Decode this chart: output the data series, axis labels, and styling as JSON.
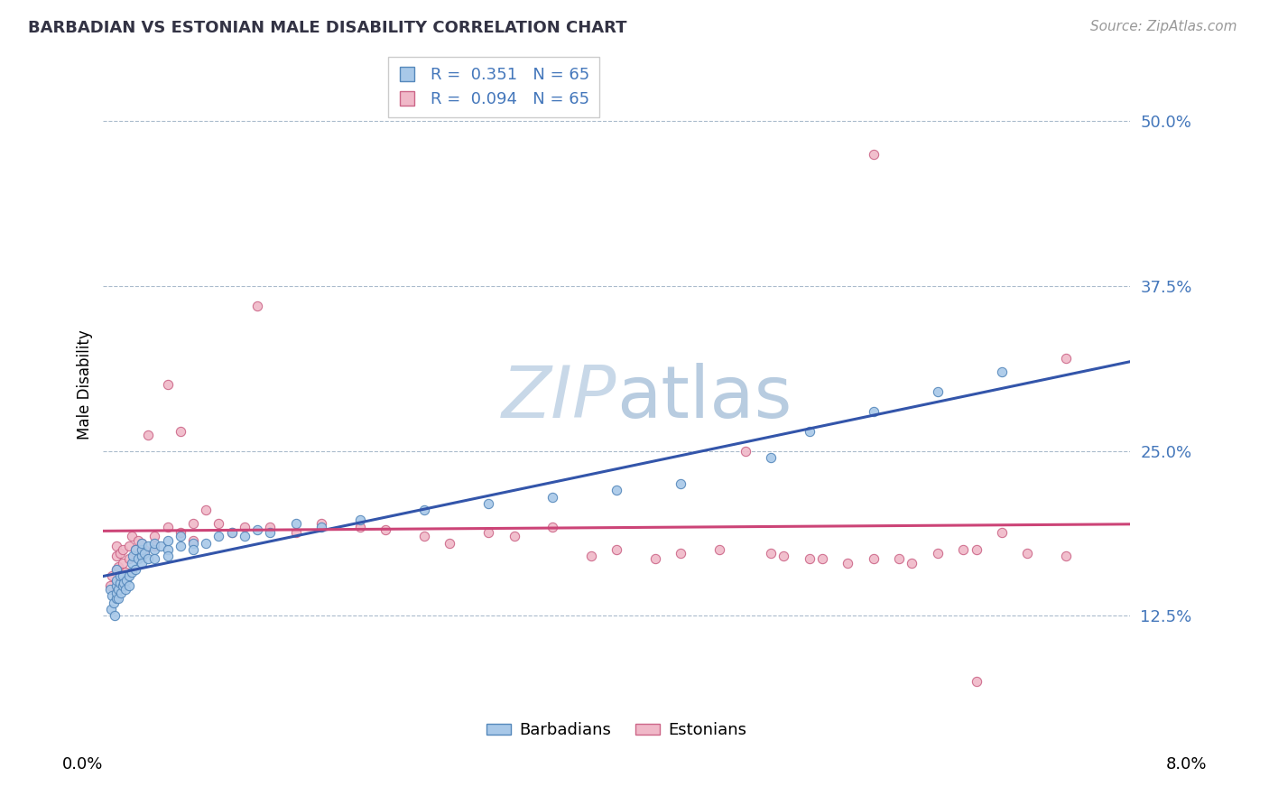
{
  "title": "BARBADIAN VS ESTONIAN MALE DISABILITY CORRELATION CHART",
  "source_text": "Source: ZipAtlas.com",
  "barbadian_R": 0.351,
  "barbadian_N": 65,
  "estonian_R": 0.094,
  "estonian_N": 65,
  "blue_dot_face": "#A8C8E8",
  "blue_dot_edge": "#5588BB",
  "pink_dot_face": "#F0B8C8",
  "pink_dot_edge": "#CC6688",
  "trend_blue": "#3355AA",
  "trend_pink": "#CC4477",
  "background": "#FFFFFF",
  "watermark_color": "#C8D8E8",
  "grid_color": "#AABBCC",
  "right_tick_color": "#4477BB",
  "title_color": "#333344",
  "xlim": [
    0.0,
    0.08
  ],
  "ylim": [
    0.055,
    0.545
  ],
  "ytick_vals": [
    0.125,
    0.25,
    0.375,
    0.5
  ],
  "ytick_labels": [
    "12.5%",
    "25.0%",
    "37.5%",
    "50.0%"
  ],
  "barbadian_x": [
    0.0005,
    0.0006,
    0.0007,
    0.0008,
    0.0009,
    0.001,
    0.001,
    0.001,
    0.001,
    0.001,
    0.0012,
    0.0012,
    0.0013,
    0.0013,
    0.0014,
    0.0015,
    0.0015,
    0.0016,
    0.0017,
    0.0018,
    0.002,
    0.002,
    0.0022,
    0.0022,
    0.0023,
    0.0025,
    0.0025,
    0.0027,
    0.003,
    0.003,
    0.003,
    0.003,
    0.0032,
    0.0035,
    0.0035,
    0.004,
    0.004,
    0.004,
    0.0045,
    0.005,
    0.005,
    0.005,
    0.006,
    0.006,
    0.007,
    0.007,
    0.008,
    0.009,
    0.01,
    0.011,
    0.012,
    0.013,
    0.015,
    0.017,
    0.02,
    0.025,
    0.03,
    0.035,
    0.04,
    0.045,
    0.052,
    0.055,
    0.06,
    0.065,
    0.07
  ],
  "barbadian_y": [
    0.145,
    0.13,
    0.14,
    0.135,
    0.125,
    0.138,
    0.142,
    0.148,
    0.152,
    0.16,
    0.138,
    0.145,
    0.15,
    0.155,
    0.142,
    0.148,
    0.155,
    0.15,
    0.145,
    0.152,
    0.155,
    0.148,
    0.158,
    0.165,
    0.17,
    0.16,
    0.175,
    0.168,
    0.17,
    0.175,
    0.165,
    0.18,
    0.172,
    0.168,
    0.178,
    0.175,
    0.18,
    0.168,
    0.178,
    0.175,
    0.182,
    0.17,
    0.178,
    0.185,
    0.18,
    0.175,
    0.18,
    0.185,
    0.188,
    0.185,
    0.19,
    0.188,
    0.195,
    0.192,
    0.198,
    0.205,
    0.21,
    0.215,
    0.22,
    0.225,
    0.245,
    0.265,
    0.28,
    0.295,
    0.31
  ],
  "estonian_x": [
    0.0005,
    0.0007,
    0.001,
    0.001,
    0.001,
    0.0012,
    0.0013,
    0.0015,
    0.0015,
    0.0017,
    0.002,
    0.002,
    0.0022,
    0.0025,
    0.0027,
    0.003,
    0.003,
    0.0032,
    0.0035,
    0.004,
    0.004,
    0.005,
    0.005,
    0.006,
    0.006,
    0.007,
    0.007,
    0.008,
    0.009,
    0.01,
    0.011,
    0.012,
    0.013,
    0.015,
    0.017,
    0.02,
    0.022,
    0.025,
    0.027,
    0.03,
    0.032,
    0.035,
    0.038,
    0.04,
    0.043,
    0.045,
    0.048,
    0.052,
    0.055,
    0.058,
    0.06,
    0.062,
    0.065,
    0.068,
    0.07,
    0.072,
    0.075,
    0.06,
    0.063,
    0.067,
    0.05,
    0.053,
    0.056,
    0.068,
    0.075
  ],
  "estonian_y": [
    0.148,
    0.155,
    0.16,
    0.17,
    0.178,
    0.162,
    0.172,
    0.165,
    0.175,
    0.158,
    0.168,
    0.178,
    0.185,
    0.175,
    0.182,
    0.172,
    0.18,
    0.175,
    0.262,
    0.178,
    0.185,
    0.192,
    0.3,
    0.188,
    0.265,
    0.195,
    0.182,
    0.205,
    0.195,
    0.188,
    0.192,
    0.36,
    0.192,
    0.188,
    0.195,
    0.192,
    0.19,
    0.185,
    0.18,
    0.188,
    0.185,
    0.192,
    0.17,
    0.175,
    0.168,
    0.172,
    0.175,
    0.172,
    0.168,
    0.165,
    0.475,
    0.168,
    0.172,
    0.175,
    0.188,
    0.172,
    0.17,
    0.168,
    0.165,
    0.175,
    0.25,
    0.17,
    0.168,
    0.075,
    0.32
  ]
}
